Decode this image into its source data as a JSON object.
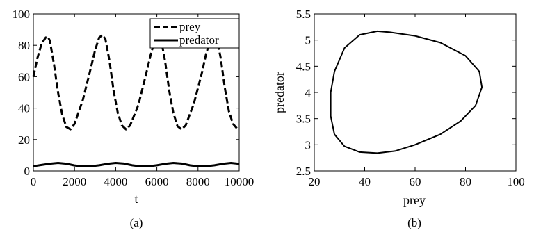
{
  "chart_data": [
    {
      "type": "line",
      "panel_label": "(a)",
      "xlabel": "t",
      "ylabel": "",
      "xlim": [
        0,
        10000
      ],
      "ylim": [
        0,
        100
      ],
      "x_ticks": [
        0,
        2000,
        4000,
        6000,
        8000,
        10000
      ],
      "y_ticks": [
        0,
        20,
        40,
        60,
        80,
        100
      ],
      "legend_placement": "top-right",
      "grid": false,
      "series": [
        {
          "name": "prey",
          "style": "dashed",
          "x": [
            0,
            200,
            400,
            600,
            700,
            800,
            1000,
            1200,
            1400,
            1600,
            1800,
            2000,
            2400,
            2800,
            3000,
            3200,
            3350,
            3500,
            3700,
            3900,
            4100,
            4300,
            4500,
            4700,
            5100,
            5500,
            5700,
            5900,
            6050,
            6200,
            6400,
            6600,
            6800,
            7000,
            7200,
            7400,
            7800,
            8200,
            8400,
            8600,
            8750,
            8900,
            9100,
            9300,
            9500,
            9700,
            9900,
            10000
          ],
          "values": [
            60,
            72,
            81,
            85,
            85.5,
            83,
            68,
            50,
            36,
            28,
            26.5,
            30,
            45,
            66,
            77,
            85,
            86.5,
            84,
            70,
            51,
            37,
            29,
            26.5,
            29,
            42,
            63,
            74,
            83,
            86.5,
            84,
            70,
            51,
            37,
            28.5,
            26.5,
            29,
            43,
            63,
            75,
            83,
            86.5,
            85,
            72,
            53,
            38,
            30,
            27,
            26.5
          ]
        },
        {
          "name": "predator",
          "style": "solid",
          "x": [
            0,
            400,
            800,
            1200,
            1600,
            2000,
            2400,
            2800,
            3200,
            3600,
            4000,
            4400,
            4800,
            5200,
            5600,
            6000,
            6400,
            6800,
            7200,
            7600,
            8000,
            8400,
            8800,
            9200,
            9600,
            10000
          ],
          "values": [
            3.0,
            3.8,
            4.6,
            5.1,
            4.6,
            3.5,
            2.9,
            3.0,
            3.6,
            4.5,
            5.1,
            4.7,
            3.6,
            2.9,
            3.0,
            3.6,
            4.5,
            5.1,
            4.7,
            3.6,
            2.9,
            3.0,
            3.6,
            4.5,
            5.1,
            4.5
          ]
        }
      ]
    },
    {
      "type": "line",
      "panel_label": "(b)",
      "xlabel": "prey",
      "ylabel": "predator",
      "xlim": [
        20,
        100
      ],
      "ylim": [
        2.5,
        5.5
      ],
      "x_ticks": [
        20,
        40,
        60,
        80,
        100
      ],
      "y_ticks": [
        2.5,
        3,
        3.5,
        4,
        4.5,
        5,
        5.5
      ],
      "grid": false,
      "series": [
        {
          "name": "",
          "style": "solid",
          "x": [
            60,
            70,
            78,
            84,
            86.5,
            85.5,
            80,
            70,
            60,
            50,
            45,
            38,
            32,
            28,
            26.5,
            26.5,
            28,
            32,
            38,
            45,
            52,
            60
          ],
          "y": [
            3.0,
            3.2,
            3.45,
            3.75,
            4.1,
            4.4,
            4.7,
            4.95,
            5.08,
            5.15,
            5.17,
            5.1,
            4.85,
            4.4,
            4.0,
            3.55,
            3.2,
            2.97,
            2.86,
            2.84,
            2.88,
            3.0
          ]
        }
      ]
    }
  ]
}
